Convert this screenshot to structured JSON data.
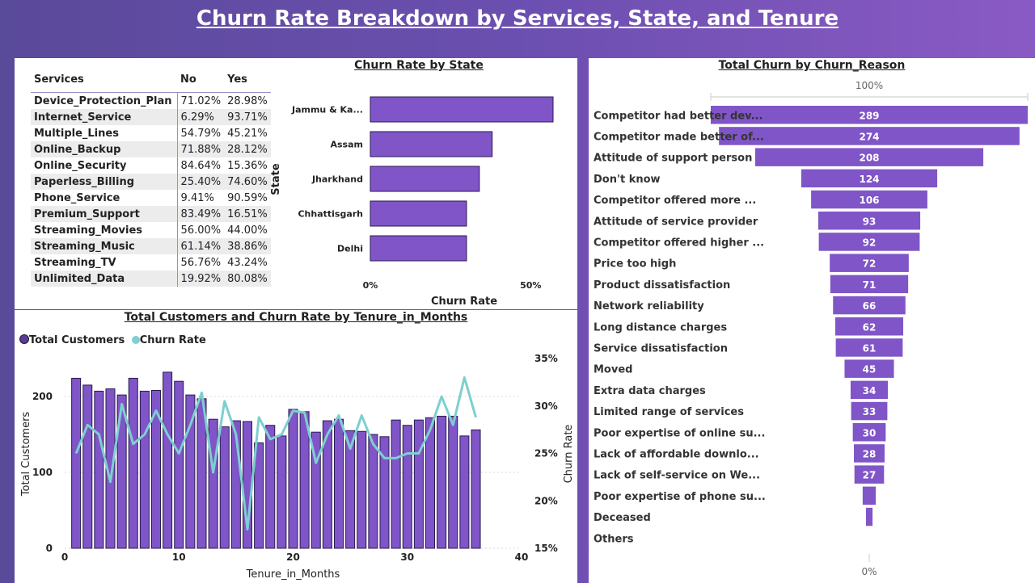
{
  "header": {
    "title": "Churn Rate Breakdown by Services, State, and Tenure"
  },
  "services_table": {
    "headers": [
      "Services",
      "No",
      "Yes"
    ],
    "rows": [
      {
        "service": "Device_Protection_Plan",
        "no": "71.02%",
        "yes": "28.98%"
      },
      {
        "service": "Internet_Service",
        "no": "6.29%",
        "yes": "93.71%"
      },
      {
        "service": "Multiple_Lines",
        "no": "54.79%",
        "yes": "45.21%"
      },
      {
        "service": "Online_Backup",
        "no": "71.88%",
        "yes": "28.12%"
      },
      {
        "service": "Online_Security",
        "no": "84.64%",
        "yes": "15.36%"
      },
      {
        "service": "Paperless_Billing",
        "no": "25.40%",
        "yes": "74.60%"
      },
      {
        "service": "Phone_Service",
        "no": "9.41%",
        "yes": "90.59%"
      },
      {
        "service": "Premium_Support",
        "no": "83.49%",
        "yes": "16.51%"
      },
      {
        "service": "Streaming_Movies",
        "no": "56.00%",
        "yes": "44.00%"
      },
      {
        "service": "Streaming_Music",
        "no": "61.14%",
        "yes": "38.86%"
      },
      {
        "service": "Streaming_TV",
        "no": "56.76%",
        "yes": "43.24%"
      },
      {
        "service": "Unlimited_Data",
        "no": "19.92%",
        "yes": "80.08%"
      }
    ]
  },
  "colors": {
    "bar": "#8055c8",
    "bar_stroke": "#2a1a50",
    "line": "#7ecfcf"
  },
  "chart_data": [
    {
      "type": "bar",
      "orientation": "horizontal",
      "title": "Churn Rate by State",
      "xlabel": "Churn Rate",
      "ylabel": "State",
      "categories": [
        "Jammu & Ka...",
        "Assam",
        "Jharkhand",
        "Chhattisgarh",
        "Delhi"
      ],
      "values": [
        57,
        38,
        34,
        30,
        30
      ],
      "xlim": [
        0,
        57
      ],
      "x_ticks": [
        {
          "value": 0,
          "label": "0%"
        },
        {
          "value": 50,
          "label": "50%"
        }
      ]
    },
    {
      "type": "bar",
      "title": "Total Customers and Churn Rate by Tenure_in_Months",
      "xlabel": "Tenure_in_Months",
      "ylabel": "Total Customers",
      "y2label": "Churn Rate",
      "legend": [
        "Total Customers",
        "Churn Rate"
      ],
      "legend_position": "top-left",
      "xlim": [
        0,
        40
      ],
      "ylim": [
        0,
        250
      ],
      "y2lim": [
        15,
        35
      ],
      "x_ticks": [
        0,
        10,
        20,
        30,
        40
      ],
      "y_ticks": [
        0,
        100,
        200
      ],
      "y2_ticks": [
        {
          "value": 15,
          "label": "15%"
        },
        {
          "value": 20,
          "label": "20%"
        },
        {
          "value": 25,
          "label": "25%"
        },
        {
          "value": 30,
          "label": "30%"
        },
        {
          "value": 35,
          "label": "35%"
        }
      ],
      "x": [
        1,
        2,
        3,
        4,
        5,
        6,
        7,
        8,
        9,
        10,
        11,
        12,
        13,
        14,
        15,
        16,
        17,
        18,
        19,
        20,
        21,
        22,
        23,
        24,
        25,
        26,
        27,
        28,
        29,
        30,
        31,
        32,
        33,
        34,
        35,
        36
      ],
      "series": [
        {
          "name": "Total Customers",
          "type": "bar",
          "values": [
            224,
            215,
            207,
            210,
            202,
            224,
            207,
            208,
            232,
            220,
            202,
            197,
            170,
            160,
            168,
            167,
            139,
            162,
            148,
            183,
            180,
            153,
            168,
            170,
            155,
            154,
            150,
            147,
            169,
            162,
            169,
            172,
            174,
            174,
            148,
            156
          ]
        },
        {
          "name": "Churn Rate",
          "type": "line",
          "axis": "secondary",
          "values": [
            25.0,
            28.0,
            27.0,
            22.0,
            30.2,
            26.0,
            27.0,
            29.5,
            27.0,
            25.0,
            28.0,
            31.4,
            23.0,
            30.5,
            27.0,
            17.0,
            28.8,
            26.5,
            27.0,
            29.5,
            29.3,
            24.0,
            27.0,
            29.0,
            25.5,
            29.0,
            26.0,
            24.5,
            24.5,
            25.0,
            25.0,
            27.5,
            31.0,
            28.0,
            33.0,
            28.8
          ]
        }
      ]
    },
    {
      "type": "funnel",
      "title": "Total Churn by Churn_Reason",
      "top_label": "100%",
      "bottom_label": "0%",
      "categories": [
        "Competitor had better dev...",
        "Competitor made better of...",
        "Attitude of support person",
        "Don't know",
        "Competitor offered more ...",
        "Attitude of service provider",
        "Competitor offered higher ...",
        "Price too high",
        "Product dissatisfaction",
        "Network reliability",
        "Long distance charges",
        "Service dissatisfaction",
        "Moved",
        "Extra data charges",
        "Limited range of services",
        "Poor expertise of online su...",
        "Lack of affordable downlo...",
        "Lack of self-service on We...",
        "Poor expertise of phone su...",
        "Deceased",
        "Others"
      ],
      "values": [
        289,
        274,
        208,
        124,
        106,
        93,
        92,
        72,
        71,
        66,
        62,
        61,
        45,
        34,
        33,
        30,
        28,
        27,
        12,
        6,
        0
      ]
    }
  ]
}
